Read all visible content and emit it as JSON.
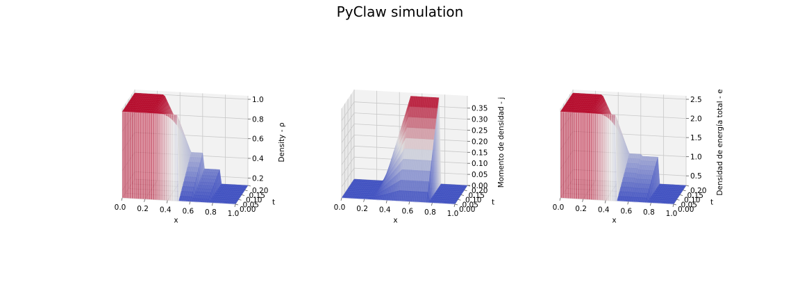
{
  "figure_title": "PyClaw simulation",
  "colors": {
    "low": "#3b4cc0",
    "mid": "#dddddd",
    "high": "#b40426",
    "pane": "#f2f2f2",
    "grid": "#c8c8c8"
  },
  "chart_data": [
    {
      "type": "surface3d",
      "title": "",
      "xlabel": "x",
      "ylabel": "t",
      "zlabel": "Density - ρ",
      "x_ticks": [
        "0.0",
        "0.2",
        "0.4",
        "0.6",
        "0.8",
        "1.0"
      ],
      "t_ticks": [
        "0.00",
        "0.05",
        "0.10",
        "0.15",
        "0.20"
      ],
      "z_ticks": [
        "0.2",
        "0.4",
        "0.6",
        "0.8",
        "1.0"
      ],
      "xlim": [
        0,
        1
      ],
      "tlim": [
        0,
        0.2
      ],
      "zlim": [
        0.125,
        1.0
      ],
      "z_tick_values": [
        0.2,
        0.4,
        0.6,
        0.8,
        1.0
      ],
      "initial_left": 1.0,
      "initial_right": 0.125,
      "final_profile": {
        "x": [
          0.0,
          0.26,
          0.5,
          0.6,
          0.6,
          0.75,
          0.75,
          1.0
        ],
        "z": [
          1.0,
          1.0,
          0.43,
          0.43,
          0.27,
          0.27,
          0.125,
          0.125
        ]
      }
    },
    {
      "type": "surface3d",
      "title": "",
      "xlabel": "x",
      "ylabel": "t",
      "zlabel": "Momento de densidad - j",
      "x_ticks": [
        "0.0",
        "0.2",
        "0.4",
        "0.6",
        "0.8",
        "1.0"
      ],
      "t_ticks": [
        "0.00",
        "0.05",
        "0.10",
        "0.15",
        "0.20"
      ],
      "z_ticks": [
        "0.00",
        "0.05",
        "0.10",
        "0.15",
        "0.20",
        "0.25",
        "0.30",
        "0.35"
      ],
      "xlim": [
        0,
        1
      ],
      "tlim": [
        0,
        0.2
      ],
      "zlim": [
        0,
        0.39
      ],
      "z_tick_values": [
        0,
        0.05,
        0.1,
        0.15,
        0.2,
        0.25,
        0.3,
        0.35
      ],
      "initial_left": 0.0,
      "initial_right": 0.0,
      "final_profile": {
        "x": [
          0.0,
          0.26,
          0.3,
          0.5,
          0.75,
          0.75,
          1.0
        ],
        "z": [
          0.0,
          0.0,
          0.05,
          0.39,
          0.39,
          0.0,
          0.0
        ]
      }
    },
    {
      "type": "surface3d",
      "title": "",
      "xlabel": "x",
      "ylabel": "t",
      "zlabel": "Densidad de energía total - e",
      "x_ticks": [
        "0.0",
        "0.2",
        "0.4",
        "0.6",
        "0.8",
        "1.0"
      ],
      "t_ticks": [
        "0.00",
        "0.05",
        "0.10",
        "0.15",
        "0.20"
      ],
      "z_ticks": [
        "0.5",
        "1.0",
        "1.5",
        "2.0",
        "2.5"
      ],
      "xlim": [
        0,
        1
      ],
      "tlim": [
        0,
        0.2
      ],
      "zlim": [
        0.25,
        2.5
      ],
      "z_tick_values": [
        0.5,
        1.0,
        1.5,
        2.0,
        2.5
      ],
      "initial_left": 2.5,
      "initial_right": 0.25,
      "final_profile": {
        "x": [
          0.0,
          0.26,
          0.5,
          0.6,
          0.6,
          0.75,
          0.75,
          1.0
        ],
        "z": [
          2.5,
          2.5,
          1.0,
          1.0,
          0.95,
          0.95,
          0.25,
          0.25
        ]
      }
    }
  ]
}
